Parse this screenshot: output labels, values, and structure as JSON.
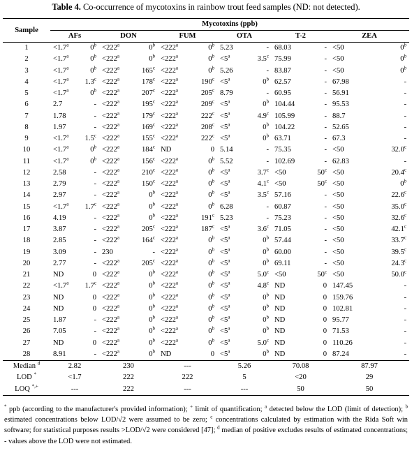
{
  "caption": {
    "label": "Table 4.",
    "text": " Co-occurrence of mycotoxins in rainbow trout feed samples (ND: not detected)."
  },
  "header": {
    "sample": "Sample",
    "group": "Mycotoxins (ppb)",
    "columns": [
      "AFs",
      "DON",
      "FUM",
      "OTA",
      "T-2",
      "ZEA"
    ]
  },
  "rows": [
    [
      "1",
      "<1.7",
      "a",
      "0",
      "b",
      "<222",
      "a",
      "0",
      "b",
      "<222",
      "a",
      "0",
      "b",
      "5.23",
      "",
      "-",
      "",
      "68.03",
      "",
      "-",
      "",
      "<50",
      "",
      "0",
      "b"
    ],
    [
      "2",
      "<1.7",
      "a",
      "0",
      "b",
      "<222",
      "a",
      "0",
      "b",
      "<222",
      "a",
      "0",
      "b",
      "<5",
      "a",
      "3.5",
      "c",
      "75.99",
      "",
      "-",
      "",
      "<50",
      "",
      "0",
      "b"
    ],
    [
      "3",
      "<1.7",
      "a",
      "0",
      "b",
      "<222",
      "a",
      "165",
      "c",
      "<222",
      "a",
      "0",
      "b",
      "5.26",
      "",
      "-",
      "",
      "83.87",
      "",
      "-",
      "",
      "<50",
      "",
      "0",
      "b"
    ],
    [
      "4",
      "<1.7",
      "a",
      "1.3",
      "c",
      "<222",
      "a",
      "178",
      "c",
      "<222",
      "a",
      "190",
      "c",
      "<5",
      "a",
      "0",
      "b",
      "62.57",
      "",
      "-",
      "",
      "67.98",
      "",
      "-",
      ""
    ],
    [
      "5",
      "<1.7",
      "a",
      "0",
      "b",
      "<222",
      "a",
      "207",
      "c",
      "<222",
      "a",
      "205",
      "c",
      "8.79",
      "",
      "-",
      "",
      "60.95",
      "",
      "-",
      "",
      "56.91",
      "",
      "-",
      ""
    ],
    [
      "6",
      "2.7",
      "",
      "-",
      "",
      "<222",
      "a",
      "195",
      "c",
      "<222",
      "a",
      "209",
      "c",
      "<5",
      "a",
      "0",
      "b",
      "104.44",
      "",
      "-",
      "",
      "95.53",
      "",
      "-",
      ""
    ],
    [
      "7",
      "1.78",
      "",
      "-",
      "",
      "<222",
      "a",
      "179",
      "c",
      "<222",
      "a",
      "222",
      "c",
      "<5",
      "a",
      "4.9",
      "c",
      "105.99",
      "",
      "-",
      "",
      "88.7",
      "",
      "-",
      ""
    ],
    [
      "8",
      "1.97",
      "",
      "-",
      "",
      "<222",
      "a",
      "169",
      "c",
      "<222",
      "a",
      "208",
      "c",
      "<5",
      "a",
      "0",
      "b",
      "104.22",
      "",
      "-",
      "",
      "52.65",
      "",
      "-",
      ""
    ],
    [
      "9",
      "<1.7",
      "a",
      "1.5",
      "c",
      "<222",
      "a",
      "155",
      "c",
      "<222",
      "a",
      "222",
      "c",
      "<5",
      "a",
      "0",
      "b",
      "63.71",
      "",
      "-",
      "",
      "67.3",
      "",
      "-",
      ""
    ],
    [
      "10",
      "<1.7",
      "a",
      "0",
      "b",
      "<222",
      "a",
      "184",
      "c",
      "ND",
      "",
      "0",
      "",
      "5.14",
      "",
      "-",
      "",
      "75.35",
      "",
      "-",
      "",
      "<50",
      "",
      "32.0",
      "c"
    ],
    [
      "11",
      "<1.7",
      "a",
      "0",
      "b",
      "<222",
      "a",
      "156",
      "c",
      "<222",
      "a",
      "0",
      "b",
      "5.52",
      "",
      "-",
      "",
      "102.69",
      "",
      "-",
      "",
      "62.83",
      "",
      "-",
      ""
    ],
    [
      "12",
      "2.58",
      "",
      "-",
      "",
      "<222",
      "a",
      "210",
      "c",
      "<222",
      "a",
      "0",
      "b",
      "<5",
      "a",
      "3.7",
      "c",
      "<50",
      "",
      "50",
      "c",
      "<50",
      "",
      "20.4",
      "c"
    ],
    [
      "13",
      "2.79",
      "",
      "-",
      "",
      "<222",
      "a",
      "150",
      "c",
      "<222",
      "a",
      "0",
      "b",
      "<5",
      "a",
      "4.1",
      "c",
      "<50",
      "",
      "50",
      "c",
      "<50",
      "",
      "0",
      "b"
    ],
    [
      "14",
      "2.97",
      "",
      "-",
      "",
      "<222",
      "a",
      "0",
      "b",
      "<222",
      "a",
      "0",
      "b",
      "<5",
      "a",
      "3.5",
      "c",
      "57.16",
      "",
      "-",
      "",
      "<50",
      "",
      "22.6",
      "c"
    ],
    [
      "15",
      "<1.7",
      "a",
      "1.7",
      "c",
      "<222",
      "a",
      "0",
      "b",
      "<222",
      "a",
      "0",
      "b",
      "6.28",
      "",
      "-",
      "",
      "60.87",
      "",
      "-",
      "",
      "<50",
      "",
      "35.0",
      "c"
    ],
    [
      "16",
      "4.19",
      "",
      "-",
      "",
      "<222",
      "a",
      "0",
      "b",
      "<222",
      "a",
      "191",
      "c",
      "5.23",
      "",
      "-",
      "",
      "75.23",
      "",
      "-",
      "",
      "<50",
      "",
      "32.6",
      "c"
    ],
    [
      "17",
      "3.87",
      "",
      "-",
      "",
      "<222",
      "a",
      "205",
      "c",
      "<222",
      "a",
      "187",
      "c",
      "<5",
      "a",
      "3.6",
      "c",
      "71.05",
      "",
      "-",
      "",
      "<50",
      "",
      "42.1",
      "c"
    ],
    [
      "18",
      "2.85",
      "",
      "-",
      "",
      "<222",
      "a",
      "164",
      "c",
      "<222",
      "a",
      "0",
      "b",
      "<5",
      "a",
      "0",
      "b",
      "57.44",
      "",
      "-",
      "",
      "<50",
      "",
      "33.7",
      "c"
    ],
    [
      "19",
      "3.09",
      "",
      "-",
      "",
      "230",
      "",
      "-",
      "",
      "<222",
      "a",
      "0",
      "b",
      "<5",
      "a",
      "0",
      "b",
      "60.00",
      "",
      "-",
      "",
      "<50",
      "",
      "39.5",
      "c"
    ],
    [
      "20",
      "2.77",
      "",
      "-",
      "",
      "<222",
      "a",
      "205",
      "c",
      "<222",
      "a",
      "0",
      "b",
      "<5",
      "a",
      "0",
      "b",
      "69.11",
      "",
      "-",
      "",
      "<50",
      "",
      "24.3",
      "c"
    ],
    [
      "21",
      "ND",
      "",
      "0",
      "",
      "<222",
      "a",
      "0",
      "b",
      "<222",
      "a",
      "0",
      "b",
      "<5",
      "a",
      "5.0",
      "c",
      "<50",
      "",
      "50",
      "c",
      "<50",
      "",
      "50.0",
      "c"
    ],
    [
      "22",
      "<1.7",
      "a",
      "1.7",
      "c",
      "<222",
      "a",
      "0",
      "b",
      "<222",
      "a",
      "0",
      "b",
      "<5",
      "a",
      "4.8",
      "c",
      "ND",
      "",
      "0",
      "",
      "147.45",
      "",
      "-",
      ""
    ],
    [
      "23",
      "ND",
      "",
      "0",
      "",
      "<222",
      "a",
      "0",
      "b",
      "<222",
      "a",
      "0",
      "b",
      "<5",
      "a",
      "0",
      "b",
      "ND",
      "",
      "0",
      "",
      "159.76",
      "",
      "-",
      ""
    ],
    [
      "24",
      "ND",
      "",
      "0",
      "",
      "<222",
      "a",
      "0",
      "b",
      "<222",
      "a",
      "0",
      "b",
      "<5",
      "a",
      "0",
      "b",
      "ND",
      "",
      "0",
      "",
      "102.81",
      "",
      "-",
      ""
    ],
    [
      "25",
      "1.87",
      "",
      "-",
      "",
      "<222",
      "a",
      "0",
      "b",
      "<222",
      "a",
      "0",
      "b",
      "<5",
      "a",
      "0",
      "b",
      "ND",
      "",
      "0",
      "",
      "95.77",
      "",
      "-",
      ""
    ],
    [
      "26",
      "7.05",
      "",
      "-",
      "",
      "<222",
      "a",
      "0",
      "b",
      "<222",
      "a",
      "0",
      "b",
      "<5",
      "a",
      "0",
      "b",
      "ND",
      "",
      "0",
      "",
      "71.53",
      "",
      "-",
      ""
    ],
    [
      "27",
      "ND",
      "",
      "0",
      "",
      "<222",
      "a",
      "0",
      "b",
      "<222",
      "a",
      "0",
      "b",
      "<5",
      "a",
      "5.0",
      "c",
      "ND",
      "",
      "0",
      "",
      "110.26",
      "",
      "-",
      ""
    ],
    [
      "28",
      "8.91",
      "",
      "-",
      "",
      "<222",
      "a",
      "0",
      "b",
      "ND",
      "",
      "0",
      "",
      "<5",
      "a",
      "0",
      "b",
      "ND",
      "",
      "0",
      "",
      "87.24",
      "",
      "-",
      ""
    ]
  ],
  "summary": [
    {
      "label": "Median",
      "sup": "d",
      "values": [
        "2.82",
        "230",
        "---",
        "5.26",
        "70.08",
        "87.97"
      ]
    },
    {
      "label": "LOD",
      "sup": "*",
      "values": [
        "<1.7",
        "222",
        "222",
        "5",
        "<20",
        "29"
      ]
    },
    {
      "label": "LOQ",
      "sup": "*,+",
      "values": [
        "---",
        "222",
        "---",
        "---",
        "50",
        "50"
      ]
    }
  ],
  "notes": [
    {
      "sup": "*",
      "text": " ppb (according to the manufacturer's provided information); "
    },
    {
      "sup": "+",
      "text": " limit of quantification; "
    },
    {
      "sup": "a",
      "text": " detected below the LOD (limit of detection); "
    },
    {
      "sup": "b",
      "text": " estimated concentrations below LOD/√2 were assumed to be zero; "
    },
    {
      "sup": "c",
      "text": " concentrations calculated by estimation with the Rida Soft win software; for statistical purposes results >LOD/√2 were considered [47]; "
    },
    {
      "sup": "d",
      "text": " median of positive excludes results of estimated concentrations; - values above the LOD were not estimated."
    }
  ]
}
